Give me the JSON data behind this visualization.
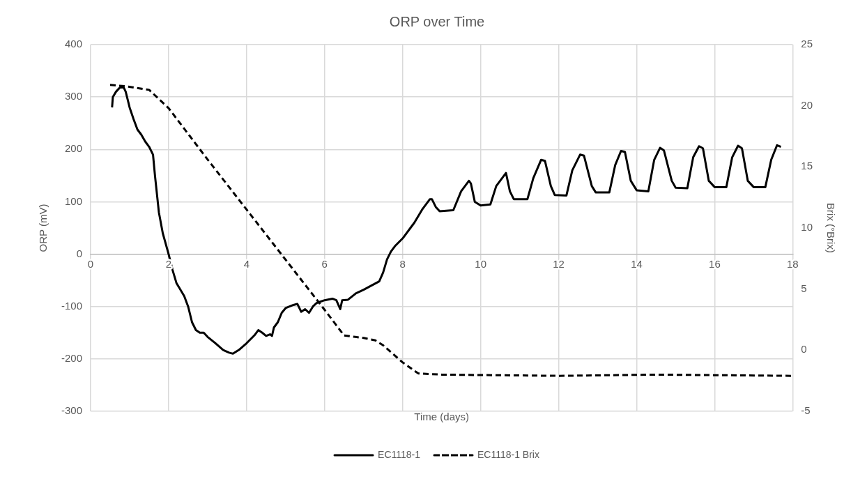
{
  "chart_data": {
    "type": "line",
    "title": "ORP over Time",
    "xlabel": "Time (days)",
    "ylabel": "ORP (mV)",
    "y2label": "Brix (°Brix)",
    "xlim": [
      0,
      18
    ],
    "xticks": [
      0,
      2,
      4,
      6,
      8,
      10,
      12,
      14,
      16,
      18
    ],
    "ylim": [
      -300,
      400
    ],
    "yticks": [
      -300,
      -200,
      -100,
      0,
      100,
      200,
      300,
      400
    ],
    "y2lim": [
      -5,
      25
    ],
    "y2ticks": [
      -5,
      0,
      5,
      10,
      15,
      20,
      25
    ],
    "grid": true,
    "legend": "bottom",
    "marker": "none",
    "series": [
      {
        "name": "EC1118-1",
        "color": "#000000",
        "line_style": "solid",
        "x": [
          0.55,
          0.57,
          0.65,
          0.75,
          0.85,
          0.9,
          1.0,
          1.1,
          1.2,
          1.3,
          1.4,
          1.5,
          1.6,
          1.65,
          1.75,
          1.85,
          2.0,
          2.1,
          2.2,
          2.4,
          2.5,
          2.6,
          2.7,
          2.8,
          2.9,
          3.0,
          3.2,
          3.4,
          3.55,
          3.65,
          3.8,
          4.0,
          4.2,
          4.3,
          4.4,
          4.5,
          4.6,
          4.65,
          4.7,
          4.8,
          4.9,
          5.0,
          5.2,
          5.3,
          5.4,
          5.5,
          5.6,
          5.7,
          5.8,
          6.0,
          6.2,
          6.3,
          6.4,
          6.45,
          6.6,
          6.8,
          7.0,
          7.2,
          7.4,
          7.5,
          7.6,
          7.7,
          7.8,
          8.0,
          8.2,
          8.3,
          8.5,
          8.7,
          8.75,
          8.85,
          8.95,
          9.3,
          9.5,
          9.7,
          9.75,
          9.85,
          10.0,
          10.25,
          10.4,
          10.55,
          10.65,
          10.75,
          10.85,
          11.2,
          11.35,
          11.55,
          11.65,
          11.8,
          11.9,
          12.2,
          12.35,
          12.55,
          12.65,
          12.85,
          12.95,
          13.3,
          13.45,
          13.6,
          13.7,
          13.85,
          14.0,
          14.3,
          14.45,
          14.6,
          14.7,
          14.9,
          15.0,
          15.3,
          15.45,
          15.6,
          15.7,
          15.85,
          16.0,
          16.3,
          16.45,
          16.6,
          16.7,
          16.85,
          17.0,
          17.3,
          17.45,
          17.6,
          17.7
        ],
        "values": [
          280,
          300,
          310,
          318,
          318,
          310,
          280,
          258,
          238,
          228,
          215,
          205,
          190,
          150,
          80,
          40,
          0,
          -30,
          -55,
          -80,
          -100,
          -130,
          -145,
          -150,
          -150,
          -158,
          -170,
          -183,
          -188,
          -190,
          -183,
          -170,
          -155,
          -145,
          -150,
          -156,
          -153,
          -156,
          -140,
          -130,
          -112,
          -103,
          -97,
          -95,
          -110,
          -105,
          -112,
          -100,
          -93,
          -88,
          -85,
          -88,
          -105,
          -88,
          -87,
          -75,
          -68,
          -60,
          -52,
          -35,
          -10,
          5,
          15,
          30,
          50,
          60,
          85,
          105,
          105,
          90,
          82,
          84,
          120,
          140,
          135,
          100,
          93,
          95,
          130,
          145,
          155,
          120,
          105,
          105,
          145,
          180,
          178,
          130,
          113,
          112,
          160,
          190,
          188,
          130,
          118,
          118,
          170,
          197,
          195,
          140,
          122,
          120,
          180,
          203,
          198,
          140,
          127,
          126,
          185,
          206,
          202,
          140,
          128,
          128,
          185,
          207,
          202,
          140,
          128,
          128,
          180,
          208,
          205
        ]
      },
      {
        "name": "EC1118-1 Brix",
        "color": "#000000",
        "line_style": "dashed",
        "axis": "y2",
        "x": [
          0.5,
          0.9,
          1.5,
          2.0,
          2.5,
          3.0,
          4.0,
          5.0,
          6.0,
          6.5,
          7.0,
          7.3,
          7.5,
          8.0,
          8.4,
          9.0,
          12.0,
          14.5,
          18.0
        ],
        "values": [
          21.7,
          21.6,
          21.3,
          19.8,
          17.7,
          15.6,
          11.5,
          7.4,
          3.3,
          1.2,
          1.0,
          0.8,
          0.4,
          -1.0,
          -1.9,
          -2.0,
          -2.1,
          -2.0,
          -2.1
        ]
      }
    ]
  }
}
